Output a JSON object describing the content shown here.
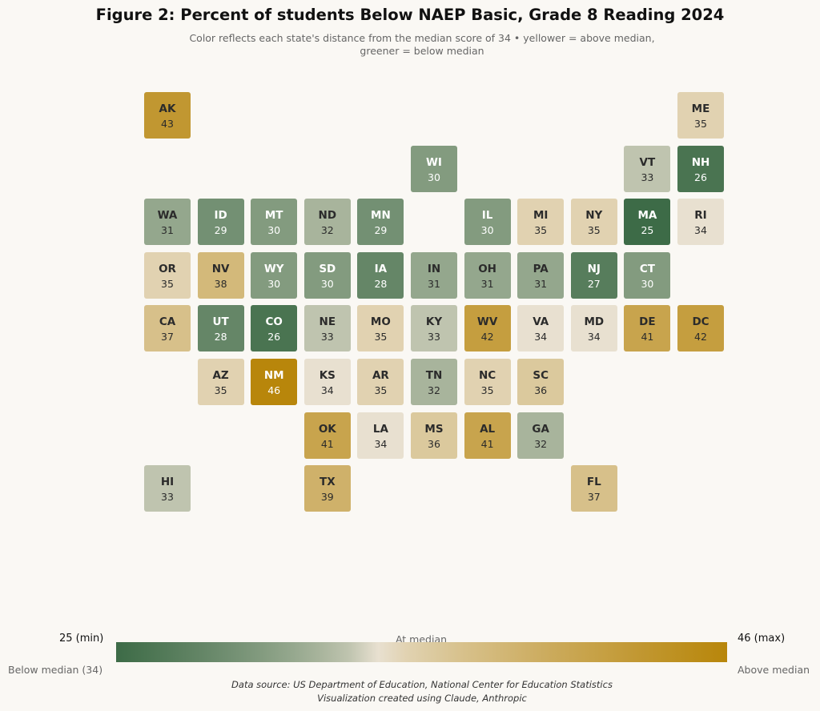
{
  "chart_data": {
    "type": "heatmap",
    "title": "Figure 2: Percent of students Below NAEP Basic, Grade 8 Reading 2024",
    "subtitle": "Color reflects each state's distance from the median score of 34  •  yellower = above median, greener = below median",
    "median": 34,
    "min": 25,
    "max": 46,
    "colors": {
      "low": "#3d6b47",
      "mid": "#e8e0d0",
      "high": "#b8860b"
    },
    "states": [
      {
        "abbr": "AK",
        "value": 43,
        "col": 0,
        "row": 0
      },
      {
        "abbr": "ME",
        "value": 35,
        "col": 10,
        "row": 0
      },
      {
        "abbr": "WI",
        "value": 30,
        "col": 5,
        "row": 1
      },
      {
        "abbr": "VT",
        "value": 33,
        "col": 9,
        "row": 1
      },
      {
        "abbr": "NH",
        "value": 26,
        "col": 10,
        "row": 1
      },
      {
        "abbr": "WA",
        "value": 31,
        "col": 0,
        "row": 2
      },
      {
        "abbr": "ID",
        "value": 29,
        "col": 1,
        "row": 2
      },
      {
        "abbr": "MT",
        "value": 30,
        "col": 2,
        "row": 2
      },
      {
        "abbr": "ND",
        "value": 32,
        "col": 3,
        "row": 2
      },
      {
        "abbr": "MN",
        "value": 29,
        "col": 4,
        "row": 2
      },
      {
        "abbr": "IL",
        "value": 30,
        "col": 6,
        "row": 2
      },
      {
        "abbr": "MI",
        "value": 35,
        "col": 7,
        "row": 2
      },
      {
        "abbr": "NY",
        "value": 35,
        "col": 8,
        "row": 2
      },
      {
        "abbr": "MA",
        "value": 25,
        "col": 9,
        "row": 2
      },
      {
        "abbr": "RI",
        "value": 34,
        "col": 10,
        "row": 2
      },
      {
        "abbr": "OR",
        "value": 35,
        "col": 0,
        "row": 3
      },
      {
        "abbr": "NV",
        "value": 38,
        "col": 1,
        "row": 3
      },
      {
        "abbr": "WY",
        "value": 30,
        "col": 2,
        "row": 3
      },
      {
        "abbr": "SD",
        "value": 30,
        "col": 3,
        "row": 3
      },
      {
        "abbr": "IA",
        "value": 28,
        "col": 4,
        "row": 3
      },
      {
        "abbr": "IN",
        "value": 31,
        "col": 5,
        "row": 3
      },
      {
        "abbr": "OH",
        "value": 31,
        "col": 6,
        "row": 3
      },
      {
        "abbr": "PA",
        "value": 31,
        "col": 7,
        "row": 3
      },
      {
        "abbr": "NJ",
        "value": 27,
        "col": 8,
        "row": 3
      },
      {
        "abbr": "CT",
        "value": 30,
        "col": 9,
        "row": 3
      },
      {
        "abbr": "CA",
        "value": 37,
        "col": 0,
        "row": 4
      },
      {
        "abbr": "UT",
        "value": 28,
        "col": 1,
        "row": 4
      },
      {
        "abbr": "CO",
        "value": 26,
        "col": 2,
        "row": 4
      },
      {
        "abbr": "NE",
        "value": 33,
        "col": 3,
        "row": 4
      },
      {
        "abbr": "MO",
        "value": 35,
        "col": 4,
        "row": 4
      },
      {
        "abbr": "KY",
        "value": 33,
        "col": 5,
        "row": 4
      },
      {
        "abbr": "WV",
        "value": 42,
        "col": 6,
        "row": 4
      },
      {
        "abbr": "VA",
        "value": 34,
        "col": 7,
        "row": 4
      },
      {
        "abbr": "MD",
        "value": 34,
        "col": 8,
        "row": 4
      },
      {
        "abbr": "DE",
        "value": 41,
        "col": 9,
        "row": 4
      },
      {
        "abbr": "DC",
        "value": 42,
        "col": 10,
        "row": 4
      },
      {
        "abbr": "AZ",
        "value": 35,
        "col": 1,
        "row": 5
      },
      {
        "abbr": "NM",
        "value": 46,
        "col": 2,
        "row": 5
      },
      {
        "abbr": "KS",
        "value": 34,
        "col": 3,
        "row": 5
      },
      {
        "abbr": "AR",
        "value": 35,
        "col": 4,
        "row": 5
      },
      {
        "abbr": "TN",
        "value": 32,
        "col": 5,
        "row": 5
      },
      {
        "abbr": "NC",
        "value": 35,
        "col": 6,
        "row": 5
      },
      {
        "abbr": "SC",
        "value": 36,
        "col": 7,
        "row": 5
      },
      {
        "abbr": "OK",
        "value": 41,
        "col": 3,
        "row": 6
      },
      {
        "abbr": "LA",
        "value": 34,
        "col": 4,
        "row": 6
      },
      {
        "abbr": "MS",
        "value": 36,
        "col": 5,
        "row": 6
      },
      {
        "abbr": "AL",
        "value": 41,
        "col": 6,
        "row": 6
      },
      {
        "abbr": "GA",
        "value": 32,
        "col": 7,
        "row": 6
      },
      {
        "abbr": "HI",
        "value": 33,
        "col": 0,
        "row": 7
      },
      {
        "abbr": "TX",
        "value": 39,
        "col": 3,
        "row": 7
      },
      {
        "abbr": "FL",
        "value": 37,
        "col": 8,
        "row": 7
      }
    ]
  },
  "legend": {
    "min_label": "25 (min)",
    "max_label": "46 (max)",
    "mid_label": "At median",
    "left_note": "Below median (34)",
    "right_note": "Above median"
  },
  "footer": {
    "source": "Data source: US Department of Education, National Center for Education Statistics",
    "credit": "Visualization created using Claude, Anthropic"
  }
}
